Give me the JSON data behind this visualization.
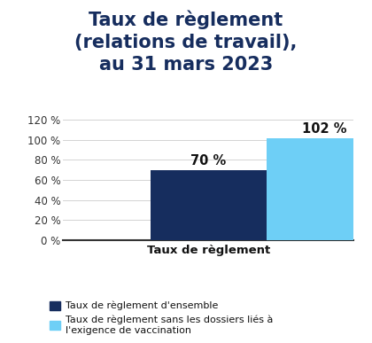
{
  "title_line1": "Taux de règlement",
  "title_line2": "(relations de travail),",
  "title_line3": "au 31 mars 2023",
  "title_color": "#162d5e",
  "values": [
    70,
    102
  ],
  "bar_colors": [
    "#162d5e",
    "#6ecff6"
  ],
  "bar_labels": [
    "70 %",
    "102 %"
  ],
  "xlabel": "Taux de règlement",
  "ylim": [
    0,
    130
  ],
  "yticks": [
    0,
    20,
    40,
    60,
    80,
    100,
    120
  ],
  "ytick_labels": [
    "0 %",
    "20 %",
    "40 %",
    "60 %",
    "80 %",
    "100 %",
    "120 %"
  ],
  "legend_label1": "Taux de règlement d'ensemble",
  "legend_label2": "Taux de règlement sans les dossiers liés à\nl'exigence de vaccination",
  "background_color": "#ffffff",
  "grid_color": "#cccccc",
  "bar_width": 0.32,
  "label_fontsize": 10.5,
  "title_fontsize": 15,
  "xlabel_fontsize": 9.5,
  "tick_fontsize": 8.5,
  "legend_fontsize": 8.0
}
